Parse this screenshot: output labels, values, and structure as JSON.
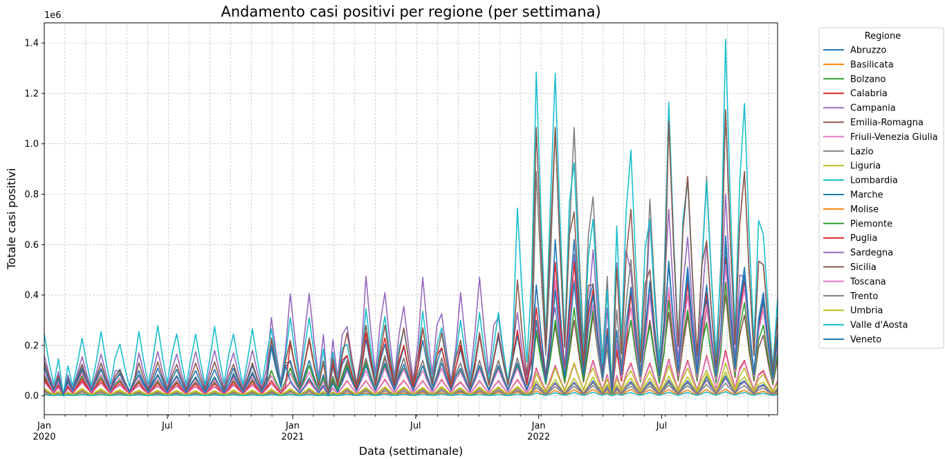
{
  "chart_data": {
    "type": "line",
    "title": "Andamento casi positivi per regione (per settimana)",
    "xlabel": "Data (settimanale)",
    "ylabel": "Totale casi positivi",
    "y_multiplier_label": "1e6",
    "ylim": [
      -75000,
      1480000
    ],
    "y_ticks": [
      0,
      200000,
      400000,
      600000,
      800000,
      1000000,
      1200000,
      1400000
    ],
    "y_tick_labels": [
      "0.0",
      "0.2",
      "0.4",
      "0.6",
      "0.8",
      "1.0",
      "1.2",
      "1.4"
    ],
    "xlim_weeks": [
      0,
      155
    ],
    "x_ticks": [
      {
        "week": 0,
        "label": "Jan",
        "sublabel": "2020"
      },
      {
        "week": 26,
        "label": "Jul",
        "sublabel": ""
      },
      {
        "week": 52.5,
        "label": "Jan",
        "sublabel": "2021"
      },
      {
        "week": 78.5,
        "label": "Jul",
        "sublabel": ""
      },
      {
        "week": 104.5,
        "label": "Jan",
        "sublabel": "2022"
      },
      {
        "week": 130.5,
        "label": "Jul",
        "sublabel": ""
      }
    ],
    "grid": true,
    "legend": {
      "title": "Regione",
      "placement": "outside-right"
    },
    "x_start_date": "2020-01-05",
    "x_step_days": 7,
    "period_weeks": 4,
    "series": [
      {
        "name": "Abruzzo",
        "color": "#1f77b4",
        "peaks": [
          25000,
          25000,
          26000,
          24000,
          20000,
          19000,
          19000,
          18000,
          17000,
          17000,
          20000,
          20000,
          21000,
          24000,
          25000,
          25000,
          27000,
          27000,
          31000,
          30000,
          28000,
          32000,
          26000,
          30000,
          30000,
          32000,
          48000,
          52000,
          55000,
          60000,
          62000,
          57000,
          57000,
          63000,
          60000,
          75000,
          80000,
          60000,
          45000
        ]
      },
      {
        "name": "Basilicata",
        "color": "#ff7f0e",
        "peaks": [
          8000,
          8000,
          8000,
          8000,
          7000,
          7000,
          7000,
          7000,
          6000,
          6000,
          7000,
          7000,
          8000,
          8000,
          9000,
          9000,
          10000,
          10000,
          11000,
          11000,
          12000,
          12000,
          13000,
          13000,
          14000,
          15000,
          20000,
          22000,
          24000,
          25000,
          26000,
          25000,
          24000,
          25000,
          23000,
          25000,
          26000,
          22000,
          18000
        ]
      },
      {
        "name": "Bolzano",
        "color": "#2ca02c",
        "peaks": [
          20000,
          20000,
          21000,
          21000,
          17000,
          16000,
          16000,
          15000,
          14000,
          14000,
          17000,
          17000,
          18000,
          20000,
          22000,
          22000,
          24000,
          25000,
          27000,
          27000,
          26000,
          28000,
          24000,
          27000,
          27000,
          28000,
          44000,
          48000,
          50000,
          52000,
          55000,
          50000,
          49000,
          53000,
          52000,
          62000,
          70000,
          55000,
          40000
        ]
      },
      {
        "name": "Calabria",
        "color": "#d62728",
        "peaks": [
          60000,
          55000,
          58000,
          54000,
          45000,
          42000,
          40000,
          40000,
          38000,
          37000,
          45000,
          45000,
          50000,
          55000,
          60000,
          55000,
          60000,
          60000,
          65000,
          62000,
          60000,
          65000,
          55000,
          60000,
          60000,
          65000,
          110000,
          120000,
          130000,
          140000,
          145000,
          130000,
          130000,
          145000,
          140000,
          160000,
          180000,
          140000,
          100000
        ]
      },
      {
        "name": "Campania",
        "color": "#9467bd",
        "peaks": [
          160000,
          150000,
          155000,
          165000,
          100000,
          170000,
          175000,
          165000,
          175000,
          180000,
          170000,
          180000,
          310000,
          405000,
          405000,
          405000,
          275000,
          475000,
          410000,
          355000,
          470000,
          325000,
          410000,
          470000,
          310000,
          330000,
          440000,
          350000,
          560000,
          580000,
          960000,
          490000,
          700000,
          740000,
          630000,
          610000,
          800000,
          470000,
          400000
        ]
      },
      {
        "name": "Emilia-Romagna",
        "color": "#8c564b",
        "peaks": [
          110000,
          100000,
          100000,
          105000,
          85000,
          80000,
          80000,
          75000,
          70000,
          70000,
          80000,
          85000,
          100000,
          110000,
          120000,
          110000,
          130000,
          140000,
          150000,
          150000,
          140000,
          150000,
          130000,
          140000,
          140000,
          150000,
          260000,
          280000,
          300000,
          320000,
          330000,
          300000,
          300000,
          330000,
          320000,
          360000,
          400000,
          320000,
          240000
        ]
      },
      {
        "name": "Friuli-Venezia Giulia",
        "color": "#e377c2",
        "peaks": [
          55000,
          50000,
          52000,
          50000,
          42000,
          40000,
          38000,
          38000,
          36000,
          35000,
          42000,
          42000,
          48000,
          52000,
          55000,
          52000,
          58000,
          58000,
          62000,
          60000,
          58000,
          62000,
          52000,
          58000,
          58000,
          62000,
          105000,
          115000,
          125000,
          135000,
          140000,
          125000,
          125000,
          140000,
          135000,
          155000,
          170000,
          135000,
          95000
        ]
      },
      {
        "name": "Lazio",
        "color": "#7f7f7f",
        "peaks": [
          120000,
          115000,
          120000,
          110000,
          90000,
          85000,
          85000,
          80000,
          75000,
          75000,
          90000,
          95000,
          220000,
          130000,
          120000,
          140000,
          140000,
          150000,
          160000,
          150000,
          140000,
          150000,
          130000,
          140000,
          140000,
          150000,
          890000,
          1065000,
          1065000,
          790000,
          620000,
          540000,
          780000,
          1145000,
          870000,
          870000,
          1135000,
          890000,
          520000
        ]
      },
      {
        "name": "Liguria",
        "color": "#bcbd22",
        "peaks": [
          30000,
          28000,
          29000,
          27000,
          23000,
          22000,
          22000,
          21000,
          20000,
          20000,
          23000,
          23000,
          26000,
          28000,
          30000,
          29000,
          32000,
          32000,
          36000,
          35000,
          33000,
          37000,
          31000,
          35000,
          35000,
          37000,
          60000,
          65000,
          70000,
          75000,
          78000,
          70000,
          70000,
          78000,
          75000,
          85000,
          95000,
          75000,
          55000
        ]
      },
      {
        "name": "Lombardia",
        "color": "#17becf",
        "peaks": [
          245000,
          215000,
          228000,
          255000,
          205000,
          255000,
          278000,
          245000,
          245000,
          275000,
          245000,
          265000,
          265000,
          310000,
          310000,
          315000,
          205000,
          345000,
          315000,
          265000,
          335000,
          270000,
          300000,
          330000,
          330000,
          745000,
          1285000,
          1280000,
          925000,
          700000,
          1225000,
          975000,
          700000,
          1165000,
          850000,
          850000,
          1415000,
          1160000,
          640000
        ]
      },
      {
        "name": "Marche",
        "color": "#1f77b4",
        "peaks": [
          135000,
          130000,
          125000,
          130000,
          105000,
          100000,
          110000,
          105000,
          100000,
          105000,
          110000,
          120000,
          190000,
          140000,
          140000,
          210000,
          160000,
          225000,
          205000,
          195000,
          220000,
          190000,
          185000,
          240000,
          235000,
          240000,
          440000,
          620000,
          620000,
          445000,
          380000,
          430000,
          455000,
          535000,
          510000,
          380000,
          635000,
          510000,
          410000
        ]
      },
      {
        "name": "Molise",
        "color": "#ff7f0e",
        "peaks": [
          5000,
          5000,
          5000,
          5000,
          4000,
          4000,
          4000,
          4000,
          4000,
          4000,
          4000,
          4000,
          5000,
          5000,
          5000,
          5000,
          6000,
          6000,
          6000,
          6000,
          6000,
          7000,
          6000,
          6000,
          6000,
          7000,
          11000,
          12000,
          13000,
          14000,
          14000,
          13000,
          13000,
          14000,
          13000,
          15000,
          16000,
          13000,
          10000
        ]
      },
      {
        "name": "Piemonte",
        "color": "#2ca02c",
        "peaks": [
          80000,
          75000,
          78000,
          75000,
          62000,
          58000,
          58000,
          55000,
          52000,
          52000,
          60000,
          62000,
          100000,
          110000,
          120000,
          130000,
          120000,
          130000,
          120000,
          110000,
          120000,
          110000,
          100000,
          110000,
          110000,
          120000,
          250000,
          300000,
          350000,
          340000,
          320000,
          300000,
          280000,
          380000,
          340000,
          290000,
          450000,
          370000,
          280000
        ]
      },
      {
        "name": "Puglia",
        "color": "#d62728",
        "peaks": [
          70000,
          65000,
          68000,
          65000,
          55000,
          52000,
          50000,
          50000,
          48000,
          48000,
          55000,
          56000,
          60000,
          210000,
          220000,
          235000,
          160000,
          250000,
          230000,
          200000,
          270000,
          190000,
          200000,
          240000,
          250000,
          260000,
          350000,
          530000,
          530000,
          420000,
          330000,
          410000,
          400000,
          420000,
          450000,
          410000,
          550000,
          460000,
          370000
        ]
      },
      {
        "name": "Sardegna",
        "color": "#9467bd",
        "peaks": [
          20000,
          19000,
          20000,
          19000,
          16000,
          15000,
          15000,
          14000,
          13000,
          13000,
          16000,
          16000,
          18000,
          20000,
          22000,
          21000,
          23000,
          23000,
          26000,
          25000,
          24000,
          27000,
          22000,
          25000,
          25000,
          27000,
          45000,
          48000,
          52000,
          55000,
          58000,
          52000,
          52000,
          58000,
          55000,
          62000,
          70000,
          55000,
          40000
        ]
      },
      {
        "name": "Sicilia",
        "color": "#8c564b",
        "peaks": [
          135000,
          120000,
          125000,
          130000,
          100000,
          130000,
          135000,
          125000,
          130000,
          135000,
          125000,
          130000,
          230000,
          220000,
          230000,
          270000,
          250000,
          280000,
          280000,
          270000,
          270000,
          250000,
          220000,
          250000,
          250000,
          460000,
          1065000,
          1065000,
          730000,
          440000,
          930000,
          740000,
          500000,
          1090000,
          870000,
          615000,
          1135000,
          890000,
          520000
        ]
      },
      {
        "name": "Toscana",
        "color": "#e377c2",
        "peaks": [
          90000,
          85000,
          88000,
          85000,
          70000,
          66000,
          65000,
          62000,
          60000,
          60000,
          70000,
          72000,
          80000,
          90000,
          95000,
          90000,
          100000,
          100000,
          110000,
          105000,
          100000,
          110000,
          95000,
          105000,
          105000,
          110000,
          300000,
          460000,
          460000,
          360000,
          400000,
          350000,
          400000,
          430000,
          400000,
          360000,
          520000,
          430000,
          340000
        ]
      },
      {
        "name": "Trento",
        "color": "#7f7f7f",
        "peaks": [
          15000,
          14000,
          15000,
          14000,
          12000,
          11000,
          11000,
          10000,
          10000,
          10000,
          12000,
          12000,
          13000,
          15000,
          16000,
          15000,
          17000,
          17000,
          19000,
          18000,
          18000,
          20000,
          17000,
          19000,
          19000,
          20000,
          33000,
          36000,
          38000,
          40000,
          42000,
          38000,
          38000,
          42000,
          40000,
          45000,
          50000,
          40000,
          30000
        ]
      },
      {
        "name": "Umbria",
        "color": "#bcbd22",
        "peaks": [
          25000,
          23000,
          24000,
          22000,
          19000,
          18000,
          18000,
          17000,
          16000,
          16000,
          19000,
          19000,
          22000,
          24000,
          26000,
          25000,
          28000,
          28000,
          31000,
          30000,
          29000,
          32000,
          27000,
          30000,
          30000,
          32000,
          90000,
          110000,
          130000,
          110000,
          120000,
          100000,
          100000,
          120000,
          110000,
          100000,
          130000,
          110000,
          85000
        ]
      },
      {
        "name": "Valle d'Aosta",
        "color": "#17becf",
        "peaks": [
          5000,
          5000,
          5000,
          5000,
          4000,
          4000,
          4000,
          4000,
          4000,
          4000,
          4000,
          4000,
          5000,
          5000,
          5000,
          5000,
          6000,
          6000,
          6000,
          6000,
          6000,
          7000,
          6000,
          6000,
          6000,
          7000,
          11000,
          12000,
          13000,
          14000,
          14000,
          13000,
          13000,
          14000,
          13000,
          15000,
          16000,
          13000,
          10000
        ]
      },
      {
        "name": "Veneto",
        "color": "#1f77b4",
        "peaks": [
          110000,
          105000,
          108000,
          105000,
          88000,
          82000,
          82000,
          78000,
          74000,
          74000,
          85000,
          88000,
          200000,
          60000,
          70000,
          90000,
          110000,
          120000,
          130000,
          125000,
          120000,
          130000,
          110000,
          120000,
          120000,
          130000,
          300000,
          420000,
          450000,
          400000,
          470000,
          430000,
          440000,
          520000,
          480000,
          440000,
          600000,
          480000,
          380000
        ]
      }
    ]
  }
}
